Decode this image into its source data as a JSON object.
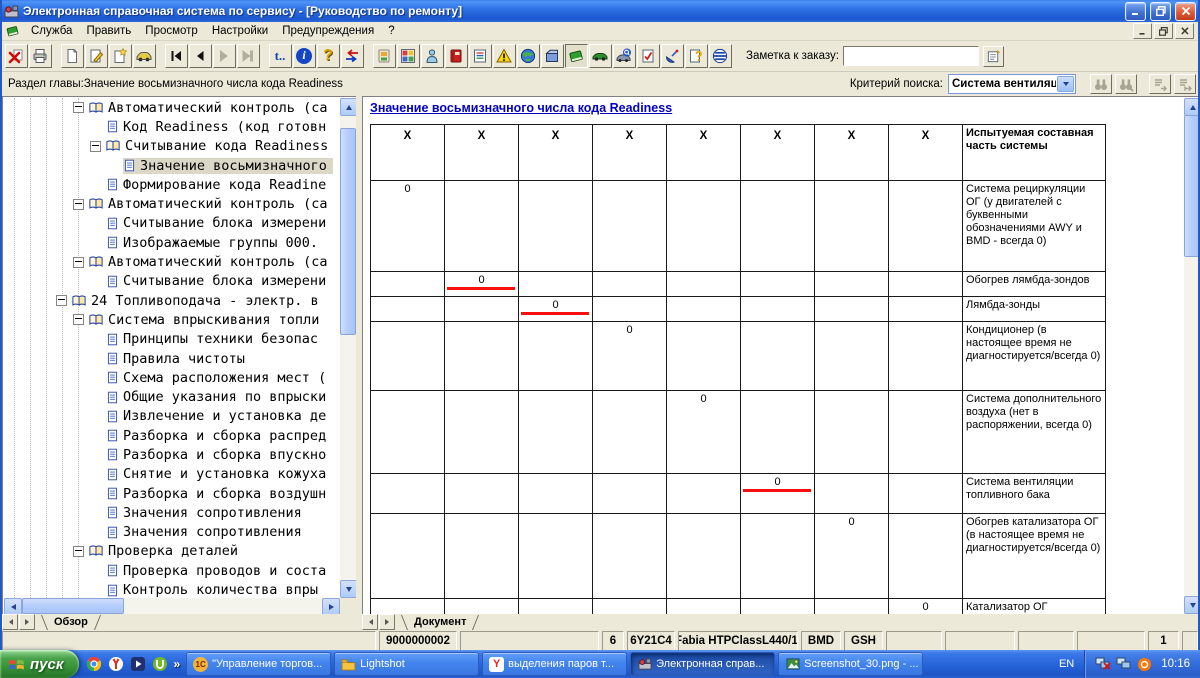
{
  "window": {
    "title": "Электронная справочная система по сервису - [Руководство по ремонту]"
  },
  "menu": {
    "items": [
      "Служба",
      "Править",
      "Просмотр",
      "Настройки",
      "Предупреждения",
      "?"
    ]
  },
  "toolbar": {
    "note_label": "Заметка к заказу:",
    "note_value": "",
    "glyphs": {
      "t": "t..",
      "info": "i",
      "help": "?"
    }
  },
  "filter_bar": {
    "chapter_label": "Раздел главы:Значение восьмизначного числа кода Readiness",
    "search_label": "Критерий поиска:",
    "search_value": "Система вентиляцин"
  },
  "tree": {
    "items": [
      {
        "depth": 3,
        "kind": "book",
        "label": "Автоматический контроль (са"
      },
      {
        "depth": 4,
        "kind": "doc",
        "label": "Код Readiness (код готовн"
      },
      {
        "depth": 4,
        "kind": "book",
        "label": "Считывание кода Readiness"
      },
      {
        "depth": 5,
        "kind": "doc",
        "label": "Значение восьмизначного",
        "selected": true
      },
      {
        "depth": 4,
        "kind": "doc",
        "label": "Формирование кода Readine"
      },
      {
        "depth": 3,
        "kind": "book",
        "label": "Автоматический контроль (са"
      },
      {
        "depth": 4,
        "kind": "doc",
        "label": "Считывание блока измерени"
      },
      {
        "depth": 4,
        "kind": "doc",
        "label": "Изображаемые группы 000."
      },
      {
        "depth": 3,
        "kind": "book",
        "label": "Автоматический контроль (са"
      },
      {
        "depth": 4,
        "kind": "doc",
        "label": "Считывание блока измерени"
      },
      {
        "depth": 2,
        "kind": "book",
        "label": "24 Топливоподача - электр. в"
      },
      {
        "depth": 3,
        "kind": "book",
        "label": "Система впрыскивания топли"
      },
      {
        "depth": 4,
        "kind": "doc",
        "label": "Принципы техники безопас"
      },
      {
        "depth": 4,
        "kind": "doc",
        "label": "Правила чистоты"
      },
      {
        "depth": 4,
        "kind": "doc",
        "label": "Схема расположения мест ("
      },
      {
        "depth": 4,
        "kind": "doc",
        "label": "Общие указания по впрыски"
      },
      {
        "depth": 4,
        "kind": "doc",
        "label": "Извлечение и установка де"
      },
      {
        "depth": 4,
        "kind": "doc",
        "label": "Разборка и сборка распред"
      },
      {
        "depth": 4,
        "kind": "doc",
        "label": "Разборка и сборка впускно"
      },
      {
        "depth": 4,
        "kind": "doc",
        "label": "Снятие и установка кожуха"
      },
      {
        "depth": 4,
        "kind": "doc",
        "label": "Разборка и сборка воздушн"
      },
      {
        "depth": 4,
        "kind": "doc",
        "label": "Значения сопротивления"
      },
      {
        "depth": 4,
        "kind": "doc",
        "label": "Значения сопротивления"
      },
      {
        "depth": 3,
        "kind": "book",
        "label": "Проверка деталей"
      },
      {
        "depth": 4,
        "kind": "doc",
        "label": "Проверка проводов и соста"
      },
      {
        "depth": 4,
        "kind": "doc",
        "label": "Контроль количества впры"
      }
    ]
  },
  "tabs": {
    "overview": "Обзор",
    "document": "Документ"
  },
  "document": {
    "title": "Значение восьмизначного числа кода Readiness",
    "table": {
      "x_header": "X",
      "desc_header": "Испытуемая составная часть системы",
      "rows": [
        {
          "zero_col": 1,
          "value": "0",
          "red_line": false,
          "desc": "Система рециркуляции ОГ (у двигателей с буквенными обозначениями AWY и BMD - всегда 0)"
        },
        {
          "zero_col": 2,
          "value": "0",
          "red_line": true,
          "desc": "Обогрев лямбда-зондов"
        },
        {
          "zero_col": 3,
          "value": "0",
          "red_line": true,
          "desc": "Лямбда-зонды"
        },
        {
          "zero_col": 4,
          "value": "0",
          "red_line": false,
          "desc": "Кондиционер (в настоящее время не диагностируется/всегда 0)"
        },
        {
          "zero_col": 5,
          "value": "0",
          "red_line": false,
          "desc": "Система дополнительного воздуха (нет в распоряжении, всегда 0)"
        },
        {
          "zero_col": 6,
          "value": "0",
          "red_line": true,
          "desc": "Система вентиляции топливного бака"
        },
        {
          "zero_col": 7,
          "value": "0",
          "red_line": false,
          "desc": "Обогрев катализатора ОГ (в настоящее время не диагностируется/всегда 0)"
        },
        {
          "zero_col": 8,
          "value": "0",
          "red_line": false,
          "desc": "Катализатор ОГ"
        }
      ]
    }
  },
  "statusbar": {
    "cells": [
      "",
      "9000000002",
      "",
      "6",
      "6Y21C4",
      "Fabia HTPClassL440/1,",
      "BMD",
      "GSH",
      "",
      "",
      "",
      "",
      "1",
      ""
    ]
  },
  "taskbar": {
    "start_label": "пуск",
    "overflow_chevron": "»",
    "icon_glyphs": {
      "onec": "1С",
      "yandex": "Y",
      "play": "▶"
    },
    "tasks": [
      {
        "icon": "onec-icon",
        "label": "\"Управление торгов...",
        "active": false
      },
      {
        "icon": "folder-icon",
        "label": "Lightshot",
        "active": false
      },
      {
        "icon": "yandex-icon",
        "label": "выделения паров т...",
        "active": false
      },
      {
        "icon": "elsa-icon",
        "label": "Электронная справ...",
        "active": true
      },
      {
        "icon": "image-icon",
        "label": "Screenshot_30.png - ...",
        "active": false
      }
    ],
    "language": "EN",
    "time": "10:16"
  }
}
